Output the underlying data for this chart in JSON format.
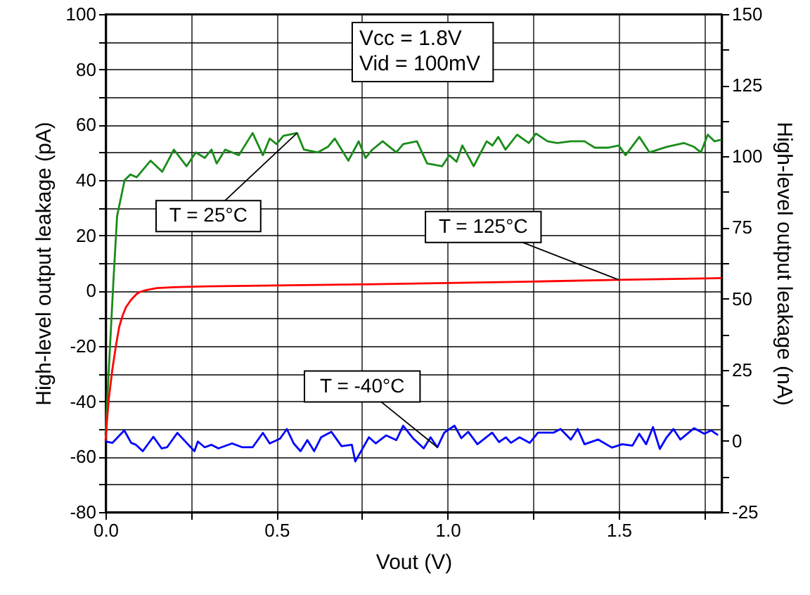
{
  "chart_data": {
    "type": "line",
    "xlabel": "Vout (V)",
    "ylabel": "High-level output leakage (pA)",
    "y2label": "High-level output leakage (nA)",
    "xlim": [
      0,
      1.8
    ],
    "xticks": [
      {
        "value": 0,
        "label": "0.0"
      },
      {
        "value": 0.25,
        "label": null
      },
      {
        "value": 0.5,
        "label": "0.5"
      },
      {
        "value": 0.75,
        "label": null
      },
      {
        "value": 1,
        "label": "1.0"
      },
      {
        "value": 1.25,
        "label": null
      },
      {
        "value": 1.5,
        "label": "1.5"
      },
      {
        "value": 1.75,
        "label": null
      }
    ],
    "ylim": [
      -80,
      100
    ],
    "yticks": [
      -80,
      {
        "value": -70,
        "label": null
      },
      -60,
      {
        "value": -50,
        "label": null
      },
      -40,
      {
        "value": -30,
        "label": null
      },
      -20,
      {
        "value": -10,
        "label": null
      },
      0,
      {
        "value": 10,
        "label": null
      },
      20,
      {
        "value": 30,
        "label": null
      },
      40,
      {
        "value": 50,
        "label": null
      },
      60,
      {
        "value": 70,
        "label": null
      },
      80,
      {
        "value": 90,
        "label": null
      },
      100
    ],
    "y2lim": [
      -25,
      150
    ],
    "y2ticks": [
      -25,
      {
        "value": -12.5,
        "label": null
      },
      0,
      {
        "value": 12.5,
        "label": null
      },
      25,
      {
        "value": 37.5,
        "label": null
      },
      50,
      {
        "value": 62.5,
        "label": null
      },
      75,
      {
        "value": 87.5,
        "label": null
      },
      100,
      {
        "value": 112.5,
        "label": null
      },
      125,
      {
        "value": 137.5,
        "label": null
      },
      150
    ],
    "grid": true,
    "legend": false,
    "annotations": [
      "Vcc = 1.8V",
      "Vid = 100mV"
    ],
    "series": [
      {
        "name": "T = 25°C",
        "color": "#1a8c1a",
        "x": [
          0,
          0.01,
          0.023,
          0.034,
          0.056,
          0.073,
          0.091,
          0.132,
          0.166,
          0.2,
          0.237,
          0.264,
          0.29,
          0.31,
          0.325,
          0.35,
          0.39,
          0.43,
          0.46,
          0.48,
          0.5,
          0.52,
          0.56,
          0.58,
          0.62,
          0.65,
          0.67,
          0.69,
          0.71,
          0.74,
          0.76,
          0.78,
          0.81,
          0.85,
          0.87,
          0.91,
          0.94,
          0.984,
          1.005,
          1.026,
          1.043,
          1.076,
          1.114,
          1.131,
          1.148,
          1.169,
          1.203,
          1.237,
          1.258,
          1.292,
          1.32,
          1.36,
          1.4,
          1.43,
          1.47,
          1.5,
          1.52,
          1.56,
          1.59,
          1.64,
          1.69,
          1.72,
          1.74,
          1.76,
          1.78,
          1.8
        ],
        "values": [
          -52,
          -28,
          3,
          27,
          40,
          42,
          41,
          47,
          43,
          51,
          45,
          50,
          48,
          51,
          46,
          51,
          49,
          57,
          49,
          55,
          53,
          56,
          57,
          51,
          50,
          52,
          55,
          51,
          47,
          54,
          48,
          51,
          54,
          50,
          53,
          54,
          46,
          45,
          49,
          46.6,
          52.5,
          45,
          54,
          52.5,
          55.6,
          51,
          56.4,
          53.4,
          56.8,
          54,
          53.4,
          54,
          54,
          51.7,
          51.7,
          52.5,
          49,
          55.6,
          50,
          52,
          53.4,
          52,
          50,
          56.4,
          54,
          54.6
        ]
      },
      {
        "name": "T = 125°C",
        "color": "#ff0000",
        "axis": "y2",
        "x": [
          0,
          0.005,
          0.01,
          0.02,
          0.03,
          0.04,
          0.05,
          0.06,
          0.075,
          0.09,
          0.1,
          0.12,
          0.15,
          0.2,
          0.3,
          0.5,
          0.75,
          1.0,
          1.25,
          1.5,
          1.8
        ],
        "values": [
          0,
          8,
          15,
          25,
          33,
          40,
          44,
          47,
          49.6,
          51.5,
          52.3,
          53,
          53.7,
          54,
          54.3,
          54.6,
          55,
          55.5,
          56,
          56.6,
          57.2
        ]
      },
      {
        "name": "T = -40°C",
        "color": "#0000ff",
        "x": [
          0,
          0.02,
          0.055,
          0.075,
          0.089,
          0.109,
          0.14,
          0.164,
          0.18,
          0.21,
          0.26,
          0.27,
          0.29,
          0.31,
          0.33,
          0.37,
          0.4,
          0.43,
          0.46,
          0.48,
          0.51,
          0.53,
          0.55,
          0.57,
          0.59,
          0.61,
          0.63,
          0.66,
          0.69,
          0.72,
          0.73,
          0.77,
          0.79,
          0.82,
          0.85,
          0.87,
          0.9,
          0.93,
          0.95,
          0.97,
          0.99,
          1.02,
          1.04,
          1.06,
          1.087,
          1.13,
          1.15,
          1.17,
          1.185,
          1.21,
          1.24,
          1.264,
          1.31,
          1.33,
          1.36,
          1.38,
          1.4,
          1.44,
          1.48,
          1.51,
          1.54,
          1.56,
          1.58,
          1.6,
          1.62,
          1.64,
          1.66,
          1.68,
          1.72,
          1.75,
          1.77,
          1.79
        ],
        "values": [
          -54.5,
          -55,
          -50.5,
          -55,
          -55.7,
          -58,
          -52.8,
          -57,
          -56.6,
          -51.4,
          -58,
          -54.5,
          -56.6,
          -55.7,
          -57,
          -55.2,
          -56.6,
          -56.6,
          -51.4,
          -55.2,
          -53.5,
          -50,
          -55.2,
          -58,
          -54,
          -58,
          -53,
          -51,
          -56.2,
          -55.7,
          -61.7,
          -53,
          -55.2,
          -52.3,
          -54,
          -48.8,
          -53.5,
          -57,
          -53,
          -56.6,
          -51.3,
          -48.8,
          -53.3,
          -51,
          -55.5,
          -51.3,
          -54.7,
          -53,
          -55,
          -53,
          -55,
          -51.3,
          -51.3,
          -50,
          -53.8,
          -50,
          -55.5,
          -53.8,
          -56.7,
          -55.5,
          -56,
          -51.7,
          -55.5,
          -49.3,
          -57.2,
          -53,
          -50,
          -53.8,
          -49.7,
          -51.7,
          -50.5,
          -52.2
        ]
      }
    ]
  }
}
